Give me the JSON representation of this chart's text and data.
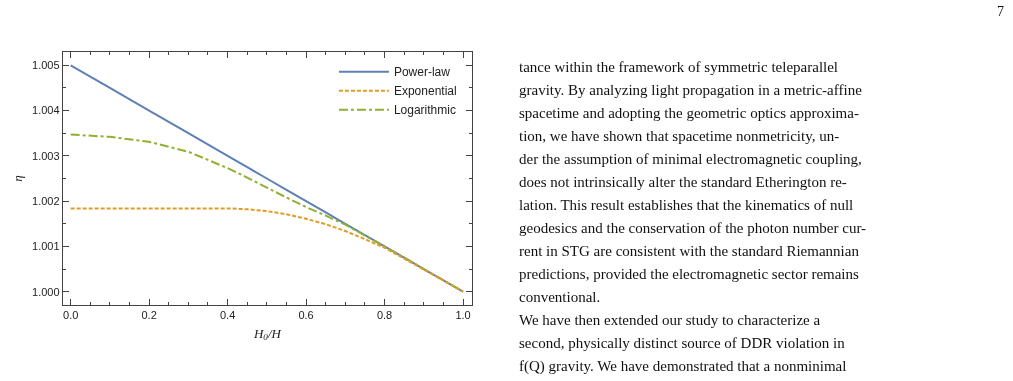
{
  "chart_data": {
    "type": "line",
    "xlabel": "H$_{0}$/H",
    "ylabel": "η",
    "x": [
      0.0,
      0.1,
      0.2,
      0.3,
      0.4,
      0.45,
      0.5,
      0.55,
      0.6,
      0.65,
      0.7,
      0.75,
      0.8,
      0.85,
      0.9,
      0.95,
      1.0
    ],
    "series": [
      {
        "name": "Power-law",
        "color": "#5e81b5",
        "line_style": "solid",
        "values": [
          1.005,
          1.0045,
          1.004,
          1.0035,
          1.003,
          1.00275,
          1.0025,
          1.00225,
          1.002,
          1.00175,
          1.0015,
          1.00125,
          1.001,
          1.00075,
          1.0005,
          1.00025,
          1.0
        ]
      },
      {
        "name": "Exponential",
        "color": "#e19c24",
        "line_style": "dashed",
        "values": [
          1.00184,
          1.00184,
          1.00184,
          1.00184,
          1.00184,
          1.00182,
          1.00178,
          1.00171,
          1.00161,
          1.00149,
          1.00134,
          1.00116,
          1.00097,
          1.00073,
          1.00049,
          1.00025,
          1.0
        ]
      },
      {
        "name": "Logarithmic",
        "color": "#8fb032",
        "line_style": "dashdot",
        "values": [
          1.00347,
          1.00342,
          1.00331,
          1.00309,
          1.00273,
          1.00252,
          1.0023,
          1.00208,
          1.00187,
          1.00168,
          1.00148,
          1.00124,
          1.001,
          1.00075,
          1.0005,
          1.00025,
          1.0
        ]
      }
    ],
    "xlim": [
      -0.02,
      1.023
    ],
    "ylim": [
      0.99971,
      1.00529
    ],
    "xticks": [
      {
        "value": 0.0,
        "label": "0.0"
      },
      0.2,
      0.4,
      0.6,
      0.8,
      {
        "value": 1.0,
        "label": "1.0"
      }
    ],
    "yticks": [
      {
        "value": 1.0,
        "label": "1.000"
      },
      1.001,
      1.002,
      1.003,
      1.004,
      1.005
    ],
    "legend": "top right",
    "annotations": [
      "7",
      "tance within the framework of symmetric teleparallel",
      "gravity. By analyzing light propagation in a metric-affine",
      "spacetime and adopting the geometric optics approxima-",
      "tion, we have shown that spacetime nonmetricity, un-",
      "der the assumption of minimal electromagnetic coupling,",
      "does not intrinsically alter the standard Etherington re-",
      "lation. This result establishes that the kinematics of null",
      "geodesics and the conservation of the photon number cur-",
      "rent in STG are consistent with the standard Riemannian",
      "predictions, provided the electromagnetic sector remains",
      "conventional.",
      "We have then extended our study to characterize a",
      "second, physically distinct source of DDR violation in",
      "f(Q) gravity. We have demonstrated that a nonminimal"
    ]
  }
}
